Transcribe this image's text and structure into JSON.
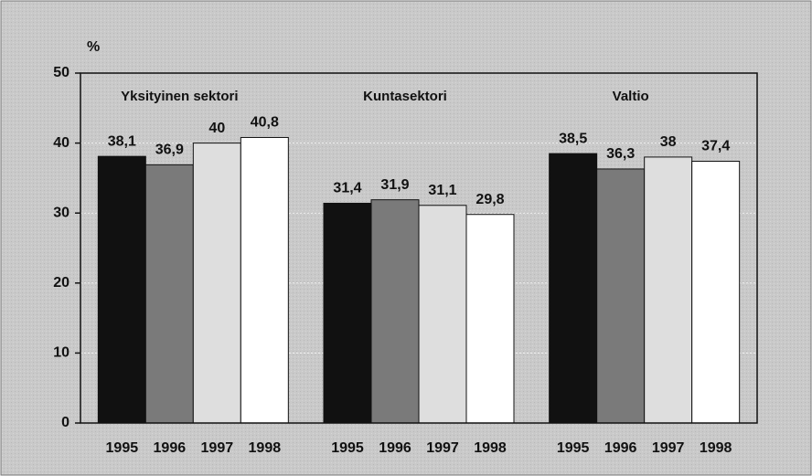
{
  "chart_data": {
    "type": "bar",
    "ylabel": "%",
    "categories": [
      "Yksityinen sektori",
      "Kuntasektori",
      "Valtio"
    ],
    "series": [
      {
        "name": "1995",
        "color": "#111111",
        "values": [
          38.1,
          31.4,
          38.5
        ],
        "value_labels": [
          "38,1",
          "31,4",
          "38,5"
        ]
      },
      {
        "name": "1996",
        "color": "#7a7a7a",
        "values": [
          36.9,
          31.9,
          36.3
        ],
        "value_labels": [
          "36,9",
          "31,9",
          "36,3"
        ]
      },
      {
        "name": "1997",
        "color": "#dedede",
        "values": [
          40,
          31.1,
          38
        ],
        "value_labels": [
          "40",
          "31,1",
          "38"
        ]
      },
      {
        "name": "1998",
        "color": "#ffffff",
        "values": [
          40.8,
          29.8,
          37.4
        ],
        "value_labels": [
          "40,8",
          "29,8",
          "37,4"
        ]
      }
    ],
    "ylim": [
      0,
      50
    ],
    "yticks": [
      0,
      10,
      20,
      30,
      40,
      50
    ],
    "grid": true
  }
}
